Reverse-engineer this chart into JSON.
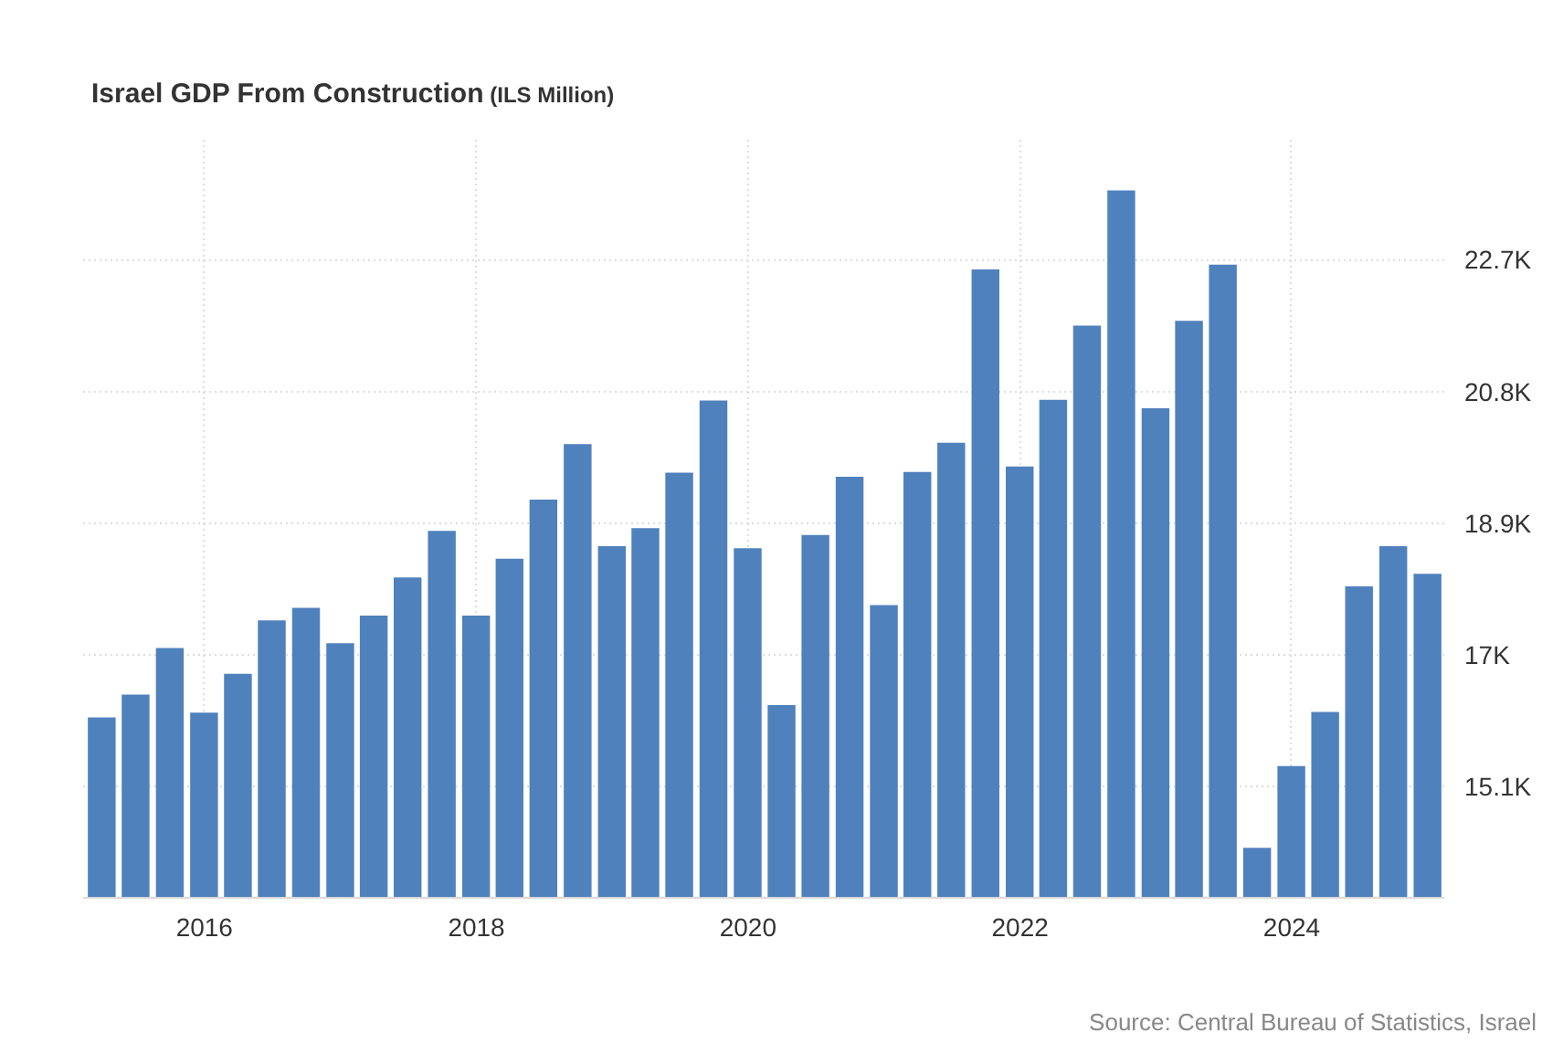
{
  "chart_data": {
    "type": "bar",
    "title": "Israel GDP From Construction",
    "subtitle": "(ILS Million)",
    "x": [
      "2015-03-31",
      "2015-06-30",
      "2015-09-30",
      "2015-12-31",
      "2016-03-31",
      "2016-06-30",
      "2016-09-30",
      "2016-12-31",
      "2017-03-31",
      "2017-06-30",
      "2017-09-30",
      "2017-12-31",
      "2018-03-31",
      "2018-06-30",
      "2018-09-30",
      "2018-12-31",
      "2019-03-31",
      "2019-06-30",
      "2019-09-30",
      "2019-12-31",
      "2020-03-31",
      "2020-06-30",
      "2020-09-30",
      "2020-12-31",
      "2021-03-31",
      "2021-06-30",
      "2021-09-30",
      "2021-12-31",
      "2022-03-31",
      "2022-06-30",
      "2022-09-30",
      "2022-12-31",
      "2023-03-31",
      "2023-06-30",
      "2023-09-30",
      "2023-12-31",
      "2024-03-31",
      "2024-06-30",
      "2024-09-30",
      "2024-12-31"
    ],
    "values": [
      16100,
      16430,
      17100,
      16170,
      16730,
      17500,
      17680,
      17170,
      17570,
      18120,
      18790,
      17570,
      18390,
      19240,
      20040,
      18570,
      18830,
      19630,
      20670,
      18540,
      16280,
      18730,
      19570,
      17720,
      19640,
      20060,
      22560,
      19720,
      20680,
      21750,
      23700,
      20560,
      21820,
      22630,
      14220,
      15400,
      16180,
      17990,
      18570,
      18170
    ],
    "color": "#4f81bd",
    "xlim": [
      "2015-02-09",
      "2025-02-14"
    ],
    "xticks": [
      {
        "value": "2016",
        "label": "2016"
      },
      {
        "value": "2018",
        "label": "2018"
      },
      {
        "value": "2020",
        "label": "2020"
      },
      {
        "value": "2022",
        "label": "2022"
      },
      {
        "value": "2024",
        "label": "2024"
      }
    ],
    "ylim": [
      13500,
      24430
    ],
    "yticks": [
      {
        "value": 15100,
        "label": "15.1K"
      },
      {
        "value": 17000,
        "label": "17K"
      },
      {
        "value": 18900,
        "label": "18.9K"
      },
      {
        "value": 20800,
        "label": "20.8K"
      },
      {
        "value": 22700,
        "label": "22.7K"
      }
    ],
    "grid": true,
    "annotations": [
      "Source: Central Bureau of Statistics, Israel"
    ]
  }
}
